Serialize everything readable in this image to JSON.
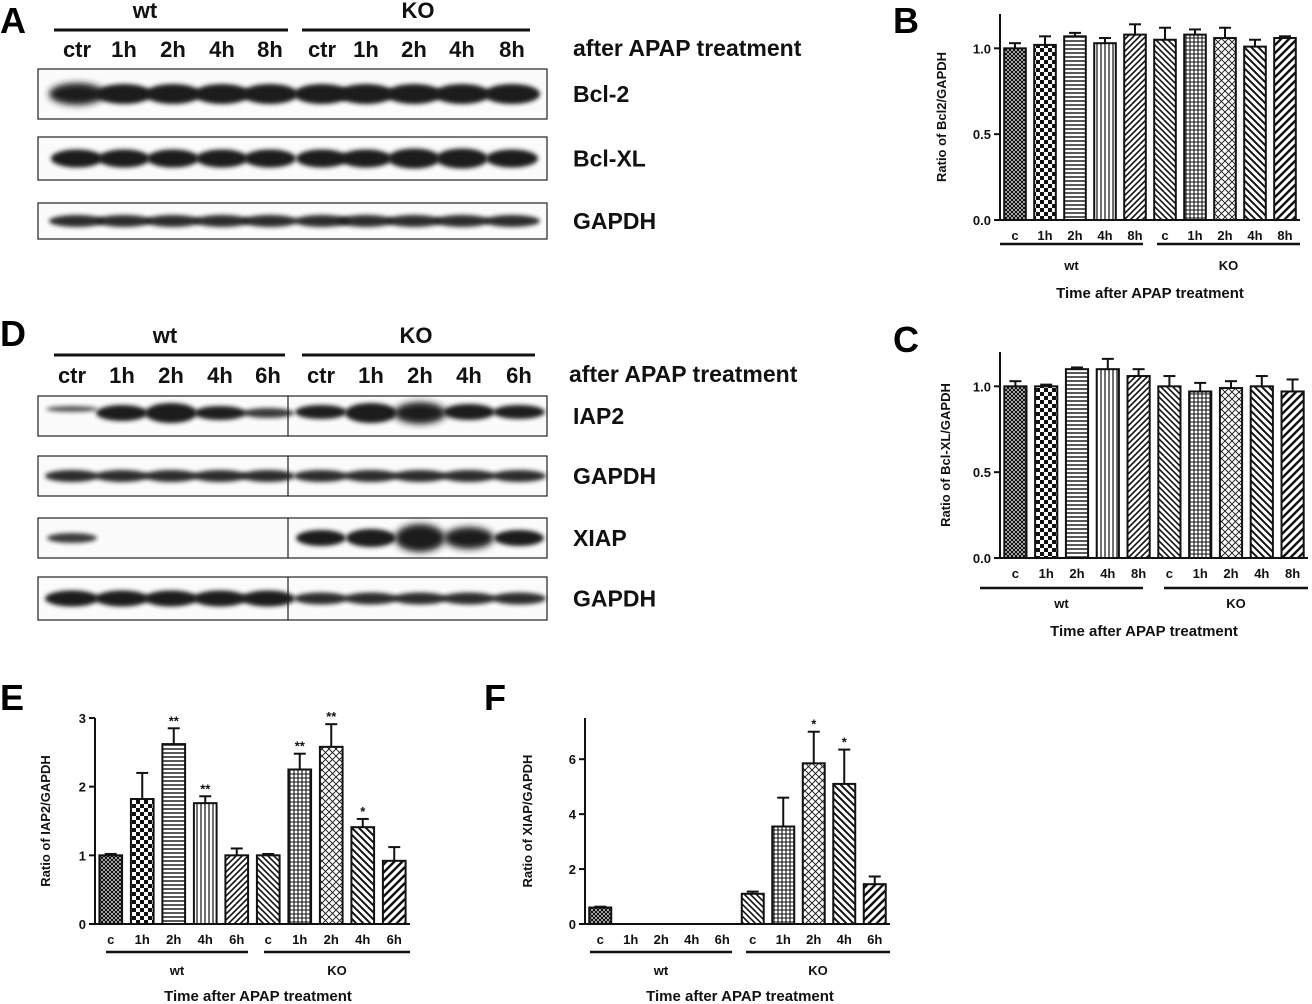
{
  "panel_labels": {
    "A": "A",
    "B": "B",
    "C": "C",
    "D": "D",
    "E": "E",
    "F": "F"
  },
  "blot_A": {
    "groups": [
      "wt",
      "KO"
    ],
    "lanes": [
      "ctr",
      "1h",
      "2h",
      "4h",
      "8h",
      "ctr",
      "1h",
      "2h",
      "4h",
      "8h"
    ],
    "treatment": "after APAP treatment",
    "rows": [
      "Bcl-2",
      "Bcl-XL",
      "GAPDH"
    ]
  },
  "blot_D": {
    "groups": [
      "wt",
      "KO"
    ],
    "lanes": [
      "ctr",
      "1h",
      "2h",
      "4h",
      "6h",
      "ctr",
      "1h",
      "2h",
      "4h",
      "6h"
    ],
    "treatment": "after APAP treatment",
    "rows": [
      "IAP2",
      "GAPDH",
      "XIAP",
      "GAPDH"
    ]
  },
  "chart_data": [
    {
      "panel": "B",
      "type": "bar",
      "categories": [
        "c",
        "1h",
        "2h",
        "4h",
        "8h",
        "c",
        "1h",
        "2h",
        "4h",
        "8h"
      ],
      "groups": [
        "wt",
        "KO"
      ],
      "values": [
        1.0,
        1.02,
        1.07,
        1.03,
        1.08,
        1.05,
        1.08,
        1.06,
        1.01,
        1.06
      ],
      "errors": [
        0.03,
        0.05,
        0.02,
        0.03,
        0.06,
        0.07,
        0.03,
        0.06,
        0.04,
        0.01
      ],
      "ylabel": "Ratio of Bcl2/GAPDH",
      "xlabel": "Time after APAP treatment",
      "ylim": [
        0,
        1.2
      ],
      "yticks": [
        "0.0",
        "0.5",
        "1.0"
      ],
      "significance": [
        "",
        "",
        "",
        "",
        "",
        "",
        "",
        "",
        "",
        ""
      ]
    },
    {
      "panel": "C",
      "type": "bar",
      "categories": [
        "c",
        "1h",
        "2h",
        "4h",
        "8h",
        "c",
        "1h",
        "2h",
        "4h",
        "8h"
      ],
      "groups": [
        "wt",
        "KO"
      ],
      "values": [
        1.0,
        1.0,
        1.1,
        1.1,
        1.06,
        1.0,
        0.97,
        0.99,
        1.0,
        0.97
      ],
      "errors": [
        0.03,
        0.01,
        0.01,
        0.06,
        0.04,
        0.06,
        0.05,
        0.04,
        0.06,
        0.07
      ],
      "ylabel": "Ratio of Bcl-XL/GAPDH",
      "xlabel": "Time after APAP treatment",
      "ylim": [
        0,
        1.2
      ],
      "yticks": [
        "0.0",
        "0.5",
        "1.0"
      ],
      "significance": [
        "",
        "",
        "",
        "",
        "",
        "",
        "",
        "",
        "",
        ""
      ]
    },
    {
      "panel": "E",
      "type": "bar",
      "categories": [
        "c",
        "1h",
        "2h",
        "4h",
        "6h",
        "c",
        "1h",
        "2h",
        "4h",
        "6h"
      ],
      "groups": [
        "wt",
        "KO"
      ],
      "values": [
        1.0,
        1.82,
        2.62,
        1.76,
        1.0,
        1.0,
        2.25,
        2.58,
        1.41,
        0.92
      ],
      "errors": [
        0.02,
        0.38,
        0.23,
        0.1,
        0.1,
        0.02,
        0.23,
        0.33,
        0.12,
        0.2
      ],
      "ylabel": "Ratio of IAP2/GAPDH",
      "xlabel": "Time after APAP treatment",
      "ylim": [
        0,
        3
      ],
      "yticks": [
        "0",
        "1",
        "2",
        "3"
      ],
      "significance": [
        "",
        "",
        "**",
        "**",
        "",
        "",
        "**",
        "**",
        "*",
        ""
      ]
    },
    {
      "panel": "F",
      "type": "bar",
      "categories": [
        "c",
        "1h",
        "2h",
        "4h",
        "6h",
        "c",
        "1h",
        "2h",
        "4h",
        "6h"
      ],
      "groups": [
        "wt",
        "KO"
      ],
      "values": [
        0.6,
        0,
        0,
        0,
        0,
        1.1,
        3.55,
        5.85,
        5.1,
        1.45
      ],
      "errors": [
        0.03,
        0,
        0,
        0,
        0,
        0.08,
        1.05,
        1.15,
        1.25,
        0.28
      ],
      "ylabel": "Ratio of XIAP/GAPDH",
      "xlabel": "Time after APAP treatment",
      "ylim": [
        0,
        7.5
      ],
      "yticks": [
        "0",
        "2",
        "4",
        "6"
      ],
      "significance": [
        "",
        "",
        "",
        "",
        "",
        "",
        "",
        "*",
        "*",
        ""
      ]
    }
  ],
  "patterns": [
    "crosshatch-fine",
    "checker",
    "hlines",
    "vlines",
    "diag-right",
    "diag-left",
    "grid",
    "diamond",
    "diag-left-2",
    "diag-right-bold"
  ],
  "colors": {
    "ink": "#111111",
    "bar_fill": "#ffffff",
    "band": "#1a1a1a"
  }
}
